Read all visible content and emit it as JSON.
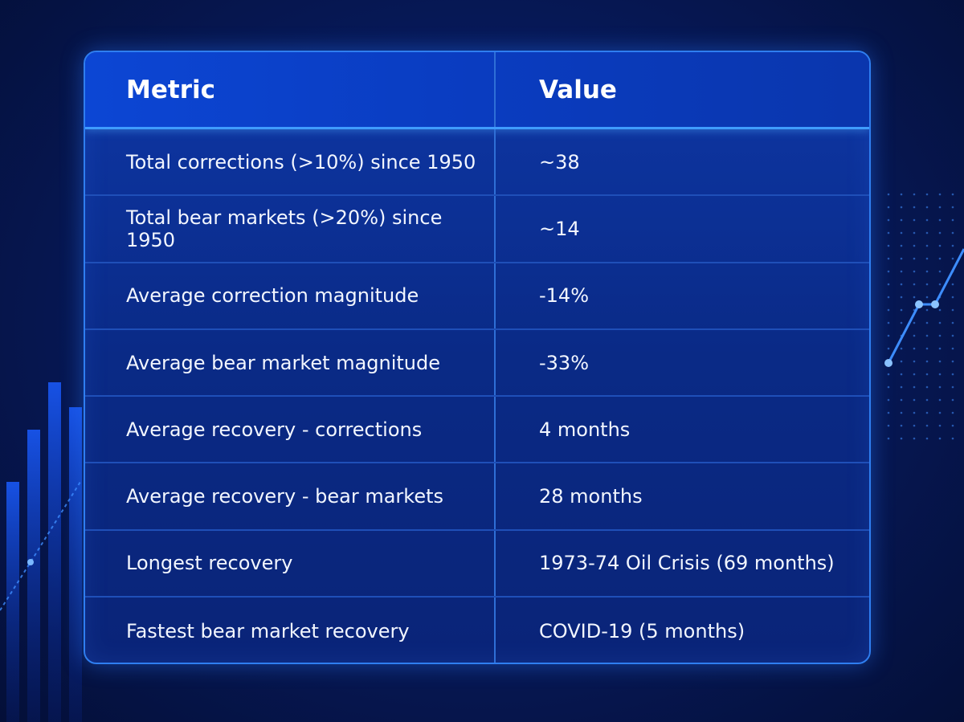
{
  "table": {
    "headers": [
      "Metric",
      "Value"
    ],
    "rows": [
      {
        "metric": "Total corrections (>10%) since 1950",
        "value": "~38"
      },
      {
        "metric": "Total bear markets (>20%) since 1950",
        "value": "~14"
      },
      {
        "metric": "Average correction magnitude",
        "value": "-14%"
      },
      {
        "metric": "Average bear market magnitude",
        "value": "-33%"
      },
      {
        "metric": "Average recovery - corrections",
        "value": "4 months"
      },
      {
        "metric": "Average recovery - bear markets",
        "value": "28 months"
      },
      {
        "metric": "Longest recovery",
        "value": "1973-74 Oil Crisis (69 months)"
      },
      {
        "metric": "Fastest bear market recovery",
        "value": "COVID-19 (5 months)"
      }
    ]
  },
  "colors": {
    "background": "#071a5c",
    "header_bg": "#0c46d4",
    "accent": "#3f9cff",
    "text": "#ffffff"
  }
}
